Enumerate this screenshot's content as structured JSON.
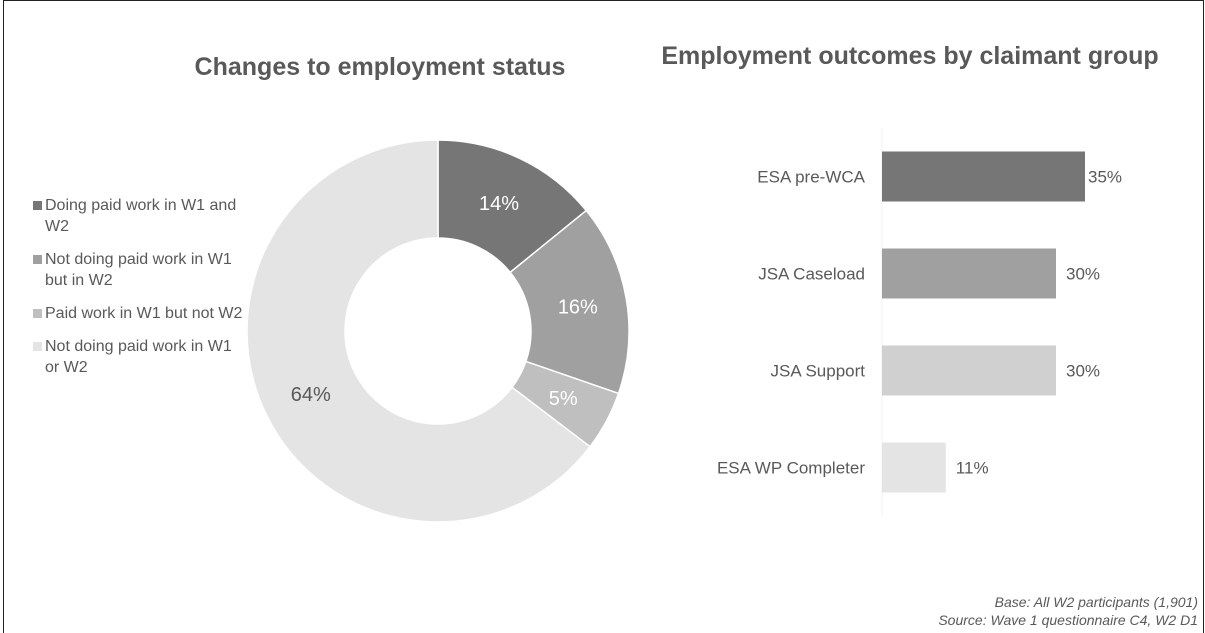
{
  "chart_data": [
    {
      "type": "pie",
      "title": "Changes to employment status",
      "categories": [
        "Doing paid work in W1 and W2",
        "Not doing paid work in W1 but  in W2",
        "Paid work in W1 but not W2",
        "Not doing paid work in W1 or W2"
      ],
      "values": [
        14,
        16,
        5,
        64
      ],
      "data_labels": [
        "14%",
        "16%",
        "5%",
        "64%"
      ],
      "colors": [
        "#767676",
        "#a0a0a0",
        "#bfbfbf",
        "#e4e4e4"
      ],
      "label_colors": [
        "#ffffff",
        "#ffffff",
        "#ffffff",
        "#595959"
      ],
      "donut": true,
      "legend": "left"
    },
    {
      "type": "bar",
      "orientation": "horizontal",
      "title": "Employment outcomes by claimant group",
      "categories": [
        "ESA pre-WCA",
        "JSA Caseload",
        "JSA Support",
        "ESA WP Completer"
      ],
      "values": [
        35,
        30,
        30,
        11
      ],
      "data_labels": [
        "35%",
        "30%",
        "30%",
        "11%"
      ],
      "colors": [
        "#767676",
        "#a0a0a0",
        "#d0d0d0",
        "#e4e4e4"
      ],
      "xlim": [
        0,
        45
      ],
      "grid": false
    }
  ],
  "source": {
    "base": "Base: All W2 participants (1,901)",
    "source": "Source: Wave 1 questionnaire C4, W2 D1"
  }
}
